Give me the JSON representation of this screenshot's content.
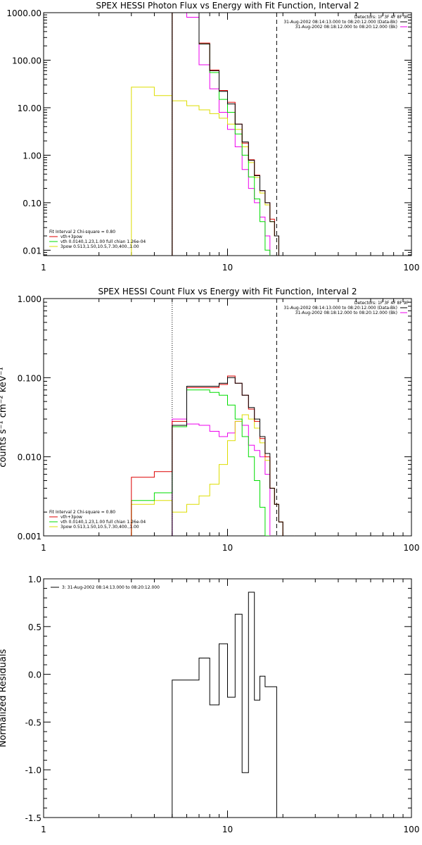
{
  "colors": {
    "data": "#000000",
    "total": "#dd0000",
    "vth": "#00dd00",
    "3pow": "#dddd00",
    "bkg": "#ee00ee",
    "axes": "#000000"
  },
  "chart_data": [
    {
      "type": "line",
      "title": "SPEX HESSI Photon Flux vs Energy with Fit Function, Interval 2",
      "xlabel": "",
      "ylabel": "",
      "xscale": "log",
      "yscale": "log",
      "xlim": [
        1,
        100
      ],
      "ylim": [
        0.0077,
        1000
      ],
      "x_tick_labels": [
        "1",
        "10",
        "100"
      ],
      "y_tick_labels": [
        "0.01",
        "0.10",
        "1.00",
        "10.00",
        "100.00",
        "1000.00"
      ],
      "legend_top": [
        "Detectors: 1F 3F 4F 8F 9F",
        "31-Aug-2002 08:14:13.000 to 08:20:12.000 (Data-Bk)",
        "31-Aug-2002 08:18:12.000 to 08:20:12.000 (Bk)"
      ],
      "legend_bottom": [
        "Fit Interval 2   Chi-square = 0.80",
        "vth+3pow",
        "vth 0.0140,1.23,1.00  full chian 1.26e-04",
        "3pow 0.513,1.50,10.5,7.30,400.,1.00"
      ],
      "vlines": [
        {
          "x": 5.0,
          "style": "dotted"
        },
        {
          "x": 18.5,
          "style": "dashed"
        }
      ],
      "edges": [
        3.0,
        4.0,
        5.0,
        6.0,
        7.0,
        8.0,
        9.0,
        10.0,
        11.0,
        12.0,
        13.0,
        14.0,
        15.0,
        16.0,
        17.0,
        18.0,
        19.0,
        20.0,
        21.5,
        23.0
      ],
      "series": [
        {
          "key": "data",
          "values": [
            null,
            null,
            1000,
            1000,
            220,
            60,
            22,
            12,
            4.5,
            1.9,
            0.78,
            0.37,
            0.18,
            0.1,
            0.04,
            0.02
          ]
        },
        {
          "key": "total",
          "values": [
            null,
            null,
            1000,
            1000,
            230,
            62,
            23,
            13,
            4.5,
            1.8,
            0.8,
            0.38,
            0.18,
            0.1,
            0.045,
            0.02
          ]
        },
        {
          "key": "vth",
          "values": [
            null,
            null,
            1000,
            1000,
            220,
            55,
            15,
            8,
            2.8,
            1.0,
            0.35,
            0.12,
            0.04,
            0.01,
            null,
            null
          ]
        },
        {
          "key": "3pow",
          "values": [
            27,
            18,
            14,
            11,
            9,
            7.5,
            6,
            4.5,
            3.5,
            1.5,
            0.7,
            0.34,
            0.16,
            0.09,
            0.04,
            0.02
          ]
        },
        {
          "key": "bkg",
          "values": [
            null,
            null,
            1000,
            800,
            80,
            25,
            8,
            3.5,
            1.5,
            0.5,
            0.2,
            0.1,
            0.05,
            0.02,
            null,
            null
          ]
        }
      ]
    },
    {
      "type": "line",
      "title": "SPEX HESSI Count Flux vs Energy with Fit Function, Interval 2",
      "xlabel": "",
      "ylabel": "counts s⁻¹ cm⁻² keV⁻¹",
      "xscale": "log",
      "yscale": "log",
      "xlim": [
        1,
        100
      ],
      "ylim": [
        0.001,
        1
      ],
      "x_tick_labels": [
        "1",
        "10",
        "100"
      ],
      "y_tick_labels": [
        "0.001",
        "0.010",
        "0.100",
        "1.000"
      ],
      "legend_top": [
        "Detectors: 1F 3F 4F 8F 9F",
        "31-Aug-2002 08:14:13.000 to 08:20:12.000 (Data-Bk)",
        "31-Aug-2002 08:18:12.000 to 08:20:12.000 (Bk)"
      ],
      "legend_bottom": [
        "Fit Interval 2   Chi-square = 0.80",
        "vth+3pow",
        "vth 0.0140,1.23,1.00  full chian 1.26e-04",
        "3pow 0.513,1.50,10.5,7.30,400.,1.00"
      ],
      "vlines": [
        {
          "x": 5.0,
          "style": "dotted"
        },
        {
          "x": 18.5,
          "style": "dashed"
        }
      ],
      "edges": [
        3.0,
        4.0,
        5.0,
        6.0,
        7.0,
        8.0,
        9.0,
        10.0,
        11.0,
        12.0,
        13.0,
        14.0,
        15.0,
        16.0,
        17.0,
        18.0,
        19.0,
        20.0,
        21.5,
        23.0
      ],
      "series": [
        {
          "key": "data",
          "values": [
            null,
            null,
            0.025,
            0.078,
            0.078,
            0.078,
            0.085,
            0.1,
            0.085,
            0.06,
            0.042,
            0.03,
            0.018,
            0.011,
            0.004,
            0.0025,
            0.0015,
            0.001,
            0.001
          ]
        },
        {
          "key": "total",
          "values": [
            0.0055,
            0.0065,
            0.028,
            0.075,
            0.075,
            0.075,
            0.082,
            0.105,
            0.085,
            0.06,
            0.04,
            0.028,
            0.017,
            0.01,
            0.004,
            0.0025,
            0.0015,
            0.001,
            0.001
          ]
        },
        {
          "key": "vth",
          "values": [
            0.0028,
            0.0035,
            0.024,
            0.07,
            0.07,
            0.065,
            0.06,
            0.045,
            0.03,
            0.018,
            0.01,
            0.005,
            0.0023,
            0.001,
            null,
            null,
            null,
            null,
            null
          ]
        },
        {
          "key": "3pow",
          "values": [
            0.0025,
            0.0028,
            0.002,
            0.0025,
            0.0032,
            0.0045,
            0.008,
            0.016,
            0.028,
            0.034,
            0.03,
            0.023,
            0.015,
            0.009,
            0.004,
            0.0025,
            0.0015,
            0.001,
            0.001
          ]
        },
        {
          "key": "bkg",
          "values": [
            null,
            null,
            0.03,
            0.026,
            0.025,
            0.021,
            0.018,
            0.02,
            0.028,
            0.025,
            0.014,
            0.012,
            0.01,
            0.006,
            null,
            null,
            null,
            null,
            null
          ]
        }
      ]
    },
    {
      "type": "line",
      "title": "",
      "xlabel": "",
      "ylabel": "Normalized Residuals",
      "xscale": "log",
      "yscale": "linear",
      "xlim": [
        1,
        100
      ],
      "ylim": [
        -1.5,
        1.0
      ],
      "x_tick_labels": [
        "1",
        "10",
        "100"
      ],
      "y_tick_labels": [
        "-1.5",
        "-1.0",
        "-0.5",
        "0.0",
        "0.5",
        "1.0"
      ],
      "y_ticks": [
        -1.5,
        -1.0,
        -0.5,
        0.0,
        0.5,
        1.0
      ],
      "legend_top": [
        "3: 31-Aug-2002 08:14:13.000 to 08:20:12.000"
      ],
      "edges": [
        5.0,
        6.0,
        7.0,
        8.0,
        9.0,
        10.0,
        11.0,
        12.0,
        13.0,
        14.0,
        15.0,
        16.0,
        17.0,
        18.5
      ],
      "series": [
        {
          "key": "data",
          "values": [
            -0.06,
            -0.06,
            0.17,
            -0.32,
            0.32,
            -0.24,
            0.63,
            -1.03,
            0.86,
            -0.27,
            -0.02,
            -0.13,
            -0.13
          ]
        }
      ]
    }
  ]
}
